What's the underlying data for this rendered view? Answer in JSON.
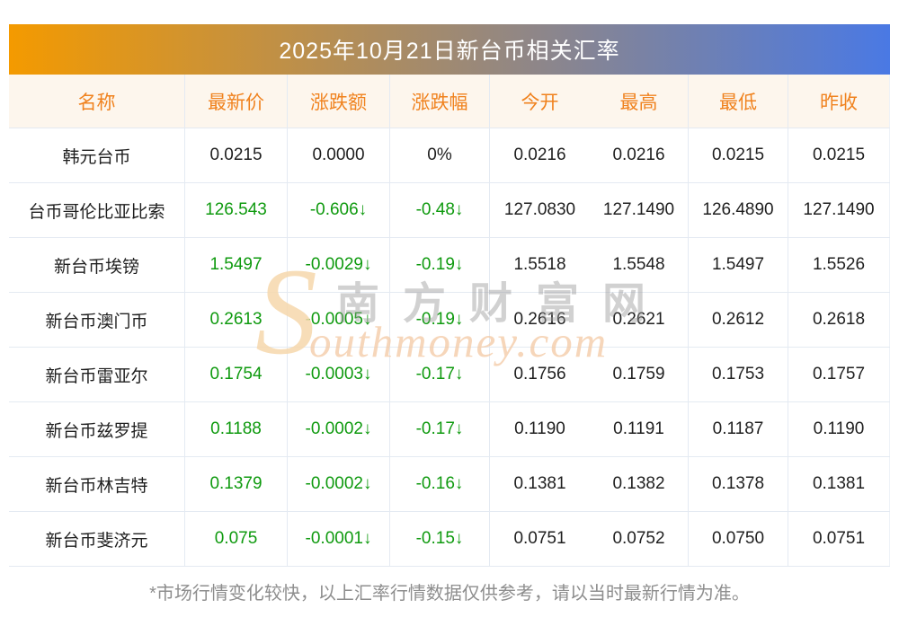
{
  "title": "2025年10月21日新台币相关汇率",
  "table": {
    "columns": [
      "名称",
      "最新价",
      "涨跌额",
      "涨跌幅",
      "今开",
      "最高",
      "最低",
      "昨收"
    ],
    "rows": [
      {
        "name": "韩元台币",
        "latest": "0.0215",
        "change": "0.0000",
        "change_pct": "0%",
        "open": "0.0216",
        "high": "0.0216",
        "low": "0.0215",
        "prev_close": "0.0215",
        "trend": "flat"
      },
      {
        "name": "台币哥伦比亚比索",
        "latest": "126.543",
        "change": "-0.606↓",
        "change_pct": "-0.48↓",
        "open": "127.0830",
        "high": "127.1490",
        "low": "126.4890",
        "prev_close": "127.1490",
        "trend": "down"
      },
      {
        "name": "新台币埃镑",
        "latest": "1.5497",
        "change": "-0.0029↓",
        "change_pct": "-0.19↓",
        "open": "1.5518",
        "high": "1.5548",
        "low": "1.5497",
        "prev_close": "1.5526",
        "trend": "down"
      },
      {
        "name": "新台币澳门币",
        "latest": "0.2613",
        "change": "-0.0005↓",
        "change_pct": "-0.19↓",
        "open": "0.2616",
        "high": "0.2621",
        "low": "0.2612",
        "prev_close": "0.2618",
        "trend": "down"
      },
      {
        "name": "新台币雷亚尔",
        "latest": "0.1754",
        "change": "-0.0003↓",
        "change_pct": "-0.17↓",
        "open": "0.1756",
        "high": "0.1759",
        "low": "0.1753",
        "prev_close": "0.1757",
        "trend": "down"
      },
      {
        "name": "新台币兹罗提",
        "latest": "0.1188",
        "change": "-0.0002↓",
        "change_pct": "-0.17↓",
        "open": "0.1190",
        "high": "0.1191",
        "low": "0.1187",
        "prev_close": "0.1190",
        "trend": "down"
      },
      {
        "name": "新台币林吉特",
        "latest": "0.1379",
        "change": "-0.0002↓",
        "change_pct": "-0.16↓",
        "open": "0.1381",
        "high": "0.1382",
        "low": "0.1378",
        "prev_close": "0.1381",
        "trend": "down"
      },
      {
        "name": "新台币斐济元",
        "latest": "0.075",
        "change": "-0.0001↓",
        "change_pct": "-0.15↓",
        "open": "0.0751",
        "high": "0.0752",
        "low": "0.0750",
        "prev_close": "0.0751",
        "trend": "down"
      }
    ]
  },
  "watermark": {
    "swash": "S",
    "cn_text": "南方财富网",
    "en_text": "outhmoney.com"
  },
  "footer": {
    "note": "*市场行情变化较快，以上汇率行情数据仅供参考，请以当时最新行情为准。"
  },
  "colors": {
    "title_gradient_left": "#f49a00",
    "title_gradient_right": "#4a79e4",
    "header_bg": "#fdf6ed",
    "header_text": "#f0821e",
    "divider": "#e4eaf2",
    "value_down": "#0f9a0f",
    "value_default": "#1f1f1f",
    "footer_text": "#8e8e8e"
  }
}
